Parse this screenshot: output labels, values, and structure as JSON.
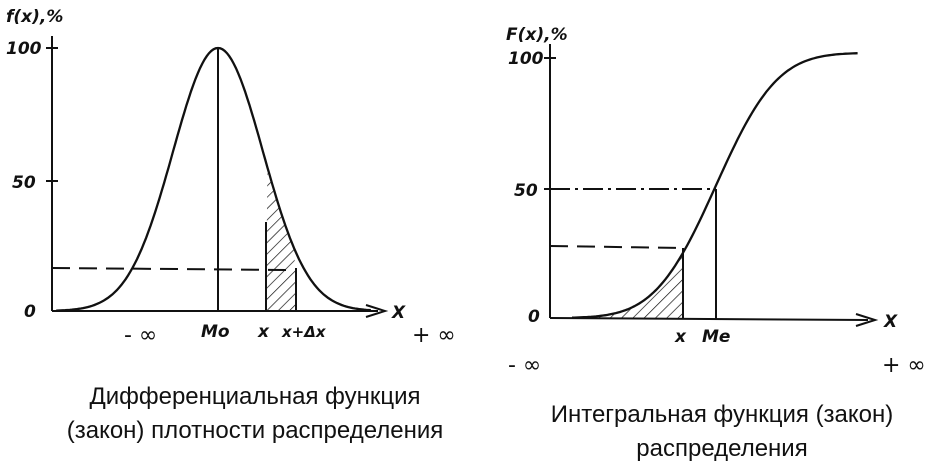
{
  "chart_data": [
    {
      "type": "line",
      "ylabel": "f(x),%",
      "xlabel": "X",
      "ylim": [
        0,
        100
      ],
      "yticks": [
        "0",
        "50",
        "100"
      ],
      "x_marks": [
        "- ∞",
        "Mo",
        "x",
        "x+Δx",
        "+ ∞"
      ],
      "curve": "bell",
      "series": [
        {
          "x": [
            -3,
            -2.5,
            -2,
            -1.5,
            -1,
            -0.5,
            0,
            0.5,
            1,
            1.5,
            2,
            2.5,
            3
          ],
          "y": [
            1,
            4,
            14,
            33,
            61,
            88,
            100,
            88,
            61,
            33,
            14,
            4,
            1
          ]
        }
      ],
      "reference_level": 17,
      "shaded_interval": [
        "x",
        "x+Δx"
      ],
      "caption": [
        "Дифференциальная функция",
        "(закон) плотности распределения"
      ]
    },
    {
      "type": "line",
      "ylabel": "F(x),%",
      "xlabel": "X",
      "ylim": [
        0,
        100
      ],
      "yticks": [
        "0",
        "50",
        "100"
      ],
      "x_marks": [
        "x",
        "Me",
        "- ∞",
        "+ ∞"
      ],
      "curve": "cumulative",
      "series": [
        {
          "x": [
            -3,
            -2.5,
            -2,
            -1.5,
            -1,
            -0.5,
            0,
            0.5,
            1,
            1.5,
            2,
            2.5,
            3
          ],
          "y": [
            0,
            1,
            3,
            7,
            16,
            31,
            50,
            69,
            84,
            93,
            97,
            99,
            100
          ]
        }
      ],
      "reference_levels": [
        50,
        27
      ],
      "shaded_interval": [
        "- ∞",
        "x"
      ],
      "caption": [
        "Интегральная функция (закон)",
        "распределения"
      ]
    }
  ]
}
